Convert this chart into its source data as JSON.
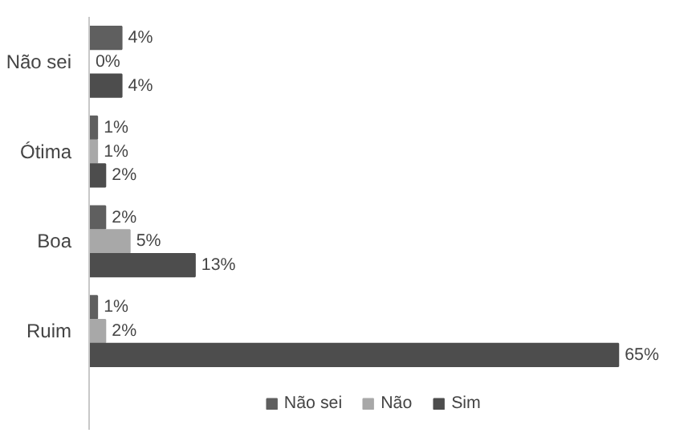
{
  "chart_data": {
    "type": "bar",
    "orientation": "horizontal",
    "categories": [
      "Não sei",
      "Ótima",
      "Boa",
      "Ruim"
    ],
    "series": [
      {
        "name": "Não sei",
        "color": "#5f5f5f",
        "values": [
          4,
          1,
          2,
          1
        ],
        "value_labels": [
          "4%",
          "1%",
          "2%",
          "1%"
        ]
      },
      {
        "name": "Não",
        "color": "#a8a8a8",
        "values": [
          0,
          1,
          5,
          2
        ],
        "value_labels": [
          "0%",
          "1%",
          "5%",
          "2%"
        ]
      },
      {
        "name": "Sim",
        "color": "#4d4d4d",
        "values": [
          4,
          2,
          13,
          65
        ],
        "value_labels": [
          "4%",
          "2%",
          "13%",
          "65%"
        ]
      }
    ],
    "legend": "bottom"
  }
}
